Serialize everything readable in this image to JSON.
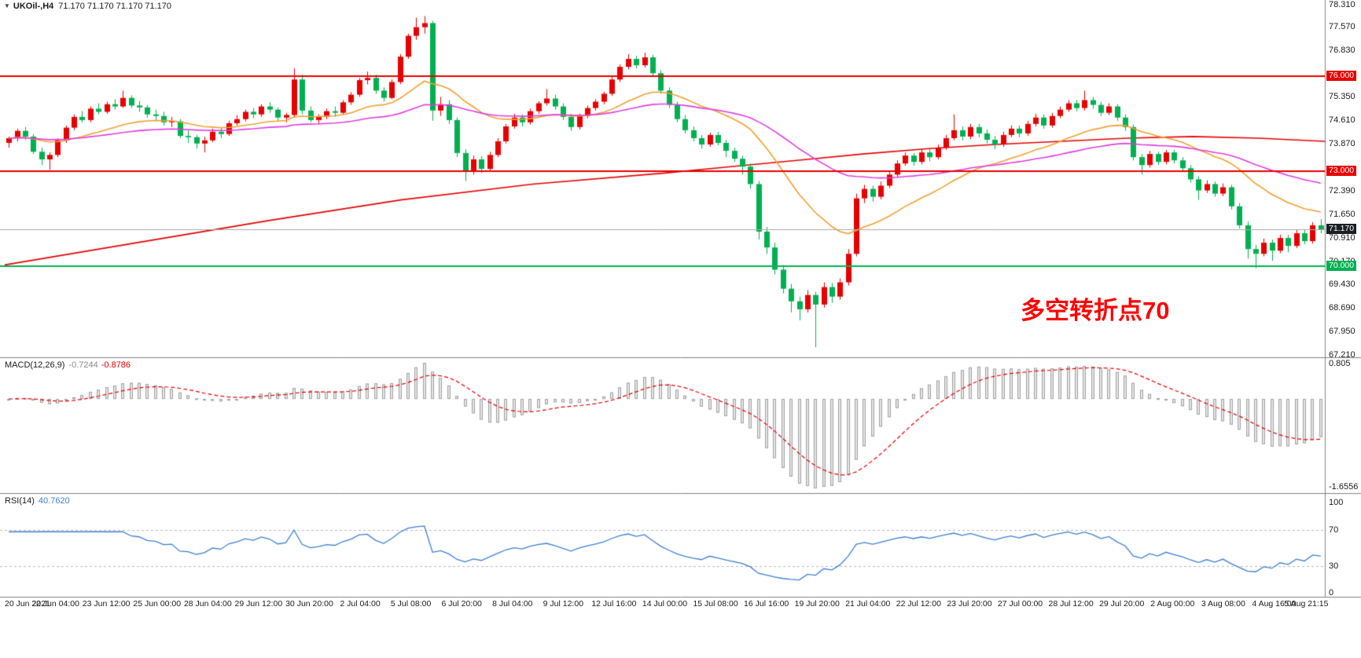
{
  "header": {
    "menu_icon": "▼",
    "symbol": "UKOil-,H4",
    "ohlc_line": "71.170 71.170 71.170 71.170"
  },
  "annotation": {
    "text": "多空转折点70",
    "color": "#FF0000"
  },
  "price_axis": {
    "ticks": [
      "78.310",
      "77.570",
      "76.830",
      "75.350",
      "74.610",
      "73.870",
      "72.390",
      "71.650",
      "70.910",
      "70.170",
      "69.430",
      "68.690",
      "67.950",
      "67.210"
    ],
    "badges": [
      {
        "label": "76.000",
        "price": 76.0,
        "bg": "#E60000",
        "fg": "#FFFFFF"
      },
      {
        "label": "73.000",
        "price": 73.0,
        "bg": "#E60000",
        "fg": "#FFFFFF"
      },
      {
        "label": "71.170",
        "price": 71.17,
        "bg": "#1B1E23",
        "fg": "#FFFFFF"
      },
      {
        "label": "70.000",
        "price": 70.0,
        "bg": "#00B050",
        "fg": "#FFFFFF"
      }
    ]
  },
  "chart_data": {
    "type": "candlestick",
    "symbol": "UKOil-",
    "timeframe": "H4",
    "title": "UKOil- H4 candlestick chart with MACD and RSI",
    "ylim": [
      67.21,
      78.31
    ],
    "up_color": "#E60000",
    "down_color": "#00B050",
    "grid": false,
    "x_labels": [
      "20 Jun 2021",
      "22 Jun 04:00",
      "23 Jun 12:00",
      "25 Jun 00:00",
      "28 Jun 04:00",
      "29 Jun 12:00",
      "30 Jun 20:00",
      "2 Jul 04:00",
      "5 Jul 08:00",
      "6 Jul 20:00",
      "8 Jul 04:00",
      "9 Jul 12:00",
      "12 Jul 16:00",
      "14 Jul 00:00",
      "15 Jul 08:00",
      "16 Jul 16:00",
      "19 Jul 20:00",
      "21 Jul 04:00",
      "22 Jul 12:00",
      "23 Jul 20:00",
      "27 Jul 00:00",
      "28 Jul 12:00",
      "29 Jul 20:00",
      "2 Aug 00:00",
      "3 Aug 08:00",
      "4 Aug 16:00",
      "5 Aug 21:15"
    ],
    "hlines": [
      {
        "price": 76.0,
        "color": "#E60000",
        "width": 2,
        "role": "resistance"
      },
      {
        "price": 73.0,
        "color": "#E60000",
        "width": 2,
        "role": "support-resistance"
      },
      {
        "price": 70.0,
        "color": "#00B050",
        "width": 2,
        "role": "support"
      },
      {
        "price": 71.17,
        "color": "#A8A8A8",
        "width": 1,
        "role": "current-price"
      }
    ],
    "moving_averages": [
      {
        "name": "ma-fast-orange",
        "period": 21,
        "color": "#F0A030"
      },
      {
        "name": "ma-mid-magenta",
        "period": 55,
        "color": "#E03CE0"
      },
      {
        "name": "ma-trend-red",
        "color": "#E60000",
        "points": [
          [
            0,
            70.05
          ],
          [
            0.1,
            70.75
          ],
          [
            0.2,
            71.45
          ],
          [
            0.3,
            72.1
          ],
          [
            0.4,
            72.6
          ],
          [
            0.5,
            72.95
          ],
          [
            0.55,
            73.15
          ],
          [
            0.6,
            73.35
          ],
          [
            0.65,
            73.55
          ],
          [
            0.7,
            73.72
          ],
          [
            0.75,
            73.85
          ],
          [
            0.8,
            73.95
          ],
          [
            0.85,
            74.05
          ],
          [
            0.9,
            74.1
          ],
          [
            0.95,
            74.05
          ],
          [
            1,
            73.95
          ]
        ]
      }
    ],
    "ohlc": [
      [
        73.9,
        74.1,
        73.75,
        74.05
      ],
      [
        74.05,
        74.35,
        73.95,
        74.28
      ],
      [
        74.28,
        74.4,
        74.0,
        74.1
      ],
      [
        74.1,
        74.18,
        73.55,
        73.62
      ],
      [
        73.62,
        73.75,
        73.2,
        73.38
      ],
      [
        73.38,
        73.6,
        73.05,
        73.52
      ],
      [
        73.52,
        74.05,
        73.45,
        73.98
      ],
      [
        73.98,
        74.45,
        73.9,
        74.38
      ],
      [
        74.38,
        74.8,
        74.3,
        74.72
      ],
      [
        74.72,
        74.9,
        74.55,
        74.62
      ],
      [
        74.62,
        75.05,
        74.55,
        74.98
      ],
      [
        74.98,
        75.15,
        74.8,
        74.88
      ],
      [
        74.88,
        75.2,
        74.82,
        75.12
      ],
      [
        75.12,
        75.28,
        74.95,
        75.05
      ],
      [
        75.05,
        75.55,
        75.0,
        75.32
      ],
      [
        75.32,
        75.4,
        75.0,
        75.08
      ],
      [
        75.08,
        75.22,
        74.88,
        75.02
      ],
      [
        75.02,
        75.1,
        74.7,
        74.8
      ],
      [
        74.8,
        74.95,
        74.62,
        74.75
      ],
      [
        74.75,
        74.88,
        74.45,
        74.55
      ],
      [
        74.55,
        74.72,
        74.4,
        74.58
      ],
      [
        74.58,
        74.65,
        74.05,
        74.12
      ],
      [
        74.12,
        74.3,
        73.9,
        74.08
      ],
      [
        74.08,
        74.15,
        73.72,
        73.88
      ],
      [
        73.88,
        74.1,
        73.6,
        73.98
      ],
      [
        73.98,
        74.35,
        73.92,
        74.25
      ],
      [
        74.25,
        74.4,
        74.05,
        74.18
      ],
      [
        74.18,
        74.6,
        74.12,
        74.52
      ],
      [
        74.52,
        74.78,
        74.45,
        74.65
      ],
      [
        74.65,
        74.95,
        74.58,
        74.88
      ],
      [
        74.88,
        75.0,
        74.68,
        74.8
      ],
      [
        74.8,
        75.12,
        74.72,
        75.05
      ],
      [
        75.05,
        75.18,
        74.85,
        74.95
      ],
      [
        74.95,
        75.02,
        74.6,
        74.7
      ],
      [
        74.7,
        74.85,
        74.55,
        74.78
      ],
      [
        74.78,
        76.25,
        74.7,
        75.9
      ],
      [
        75.9,
        76.05,
        74.8,
        74.92
      ],
      [
        74.92,
        75.05,
        74.55,
        74.62
      ],
      [
        74.62,
        74.8,
        74.48,
        74.72
      ],
      [
        74.72,
        74.98,
        74.65,
        74.9
      ],
      [
        74.9,
        75.05,
        74.72,
        74.85
      ],
      [
        74.85,
        75.25,
        74.8,
        75.18
      ],
      [
        75.18,
        75.5,
        75.1,
        75.42
      ],
      [
        75.42,
        75.95,
        75.35,
        75.88
      ],
      [
        75.88,
        76.15,
        75.75,
        75.95
      ],
      [
        75.95,
        76.05,
        75.45,
        75.55
      ],
      [
        75.55,
        75.65,
        75.2,
        75.32
      ],
      [
        75.32,
        75.9,
        75.28,
        75.82
      ],
      [
        75.82,
        76.7,
        75.75,
        76.62
      ],
      [
        76.62,
        77.35,
        76.55,
        77.28
      ],
      [
        77.28,
        77.85,
        77.15,
        77.55
      ],
      [
        77.55,
        77.9,
        77.35,
        77.68
      ],
      [
        77.68,
        77.75,
        74.6,
        74.92
      ],
      [
        74.92,
        75.35,
        74.75,
        75.12
      ],
      [
        75.12,
        75.25,
        74.5,
        74.62
      ],
      [
        74.62,
        74.7,
        73.45,
        73.58
      ],
      [
        73.58,
        73.7,
        72.7,
        73.02
      ],
      [
        73.02,
        73.5,
        72.9,
        73.38
      ],
      [
        73.38,
        73.48,
        72.95,
        73.08
      ],
      [
        73.08,
        73.62,
        73.0,
        73.52
      ],
      [
        73.52,
        74.05,
        73.45,
        73.95
      ],
      [
        73.95,
        74.5,
        73.88,
        74.42
      ],
      [
        74.42,
        74.82,
        74.35,
        74.7
      ],
      [
        74.7,
        74.8,
        74.42,
        74.55
      ],
      [
        74.55,
        74.98,
        74.48,
        74.9
      ],
      [
        74.9,
        75.22,
        74.82,
        75.15
      ],
      [
        75.15,
        75.6,
        75.08,
        75.3
      ],
      [
        75.3,
        75.42,
        74.95,
        75.05
      ],
      [
        75.05,
        75.15,
        74.62,
        74.72
      ],
      [
        74.72,
        74.82,
        74.28,
        74.4
      ],
      [
        74.4,
        74.82,
        74.32,
        74.75
      ],
      [
        74.75,
        75.08,
        74.68,
        75.0
      ],
      [
        75.0,
        75.28,
        74.92,
        75.2
      ],
      [
        75.2,
        75.52,
        75.12,
        75.45
      ],
      [
        75.45,
        75.98,
        75.38,
        75.9
      ],
      [
        75.9,
        76.38,
        75.82,
        76.3
      ],
      [
        76.3,
        76.7,
        76.22,
        76.55
      ],
      [
        76.55,
        76.65,
        76.25,
        76.35
      ],
      [
        76.35,
        76.75,
        76.28,
        76.6
      ],
      [
        76.6,
        76.68,
        76.0,
        76.1
      ],
      [
        76.1,
        76.2,
        75.45,
        75.55
      ],
      [
        75.55,
        75.65,
        75.0,
        75.1
      ],
      [
        75.1,
        75.2,
        74.55,
        74.65
      ],
      [
        74.65,
        74.78,
        74.2,
        74.3
      ],
      [
        74.3,
        74.42,
        73.95,
        74.05
      ],
      [
        74.05,
        74.15,
        73.72,
        73.85
      ],
      [
        73.85,
        74.22,
        73.78,
        74.15
      ],
      [
        74.15,
        74.25,
        73.82,
        73.9
      ],
      [
        73.9,
        74.0,
        73.45,
        73.65
      ],
      [
        73.65,
        73.75,
        73.3,
        73.4
      ],
      [
        73.4,
        73.5,
        72.9,
        73.15
      ],
      [
        73.15,
        73.25,
        72.45,
        72.6
      ],
      [
        72.6,
        72.7,
        70.85,
        71.1
      ],
      [
        71.1,
        71.25,
        70.4,
        70.6
      ],
      [
        70.6,
        70.75,
        69.75,
        69.9
      ],
      [
        69.9,
        70.05,
        69.15,
        69.3
      ],
      [
        69.3,
        69.45,
        68.55,
        68.9
      ],
      [
        68.9,
        69.05,
        68.3,
        68.65
      ],
      [
        68.65,
        69.25,
        68.55,
        69.1
      ],
      [
        69.1,
        69.2,
        67.45,
        68.8
      ],
      [
        68.8,
        69.5,
        68.7,
        69.35
      ],
      [
        69.35,
        69.48,
        68.85,
        69.05
      ],
      [
        69.05,
        69.62,
        68.95,
        69.5
      ],
      [
        69.5,
        70.55,
        69.4,
        70.4
      ],
      [
        70.4,
        72.3,
        70.32,
        72.15
      ],
      [
        72.15,
        72.58,
        72.0,
        72.45
      ],
      [
        72.45,
        72.55,
        72.05,
        72.2
      ],
      [
        72.2,
        72.68,
        72.12,
        72.55
      ],
      [
        72.55,
        73.0,
        72.48,
        72.9
      ],
      [
        72.9,
        73.35,
        72.82,
        73.25
      ],
      [
        73.25,
        73.6,
        73.18,
        73.5
      ],
      [
        73.5,
        73.58,
        73.18,
        73.3
      ],
      [
        73.3,
        73.7,
        73.22,
        73.6
      ],
      [
        73.6,
        73.7,
        73.32,
        73.45
      ],
      [
        73.45,
        73.85,
        73.38,
        73.75
      ],
      [
        73.75,
        74.15,
        73.68,
        74.05
      ],
      [
        74.05,
        74.8,
        73.98,
        74.3
      ],
      [
        74.3,
        74.42,
        73.98,
        74.1
      ],
      [
        74.1,
        74.5,
        74.02,
        74.4
      ],
      [
        74.4,
        74.5,
        74.08,
        74.2
      ],
      [
        74.2,
        74.32,
        73.88,
        74.0
      ],
      [
        74.0,
        74.12,
        73.7,
        73.85
      ],
      [
        73.85,
        74.25,
        73.78,
        74.15
      ],
      [
        74.15,
        74.45,
        74.08,
        74.35
      ],
      [
        74.35,
        74.45,
        74.08,
        74.2
      ],
      [
        74.2,
        74.6,
        74.12,
        74.5
      ],
      [
        74.5,
        74.82,
        74.42,
        74.7
      ],
      [
        74.7,
        74.8,
        74.35,
        74.45
      ],
      [
        74.45,
        74.85,
        74.38,
        74.75
      ],
      [
        74.75,
        75.05,
        74.68,
        74.95
      ],
      [
        74.95,
        75.25,
        74.88,
        75.15
      ],
      [
        75.15,
        75.25,
        74.9,
        75.0
      ],
      [
        75.0,
        75.55,
        74.92,
        75.25
      ],
      [
        75.25,
        75.35,
        74.98,
        75.1
      ],
      [
        75.1,
        75.2,
        74.75,
        74.85
      ],
      [
        74.85,
        75.15,
        74.78,
        75.05
      ],
      [
        75.05,
        75.12,
        74.6,
        74.7
      ],
      [
        74.7,
        74.8,
        74.28,
        74.4
      ],
      [
        74.4,
        74.48,
        73.35,
        73.45
      ],
      [
        73.45,
        73.55,
        72.9,
        73.2
      ],
      [
        73.2,
        73.65,
        73.12,
        73.55
      ],
      [
        73.55,
        73.62,
        73.2,
        73.3
      ],
      [
        73.3,
        73.68,
        73.22,
        73.6
      ],
      [
        73.6,
        73.68,
        73.25,
        73.35
      ],
      [
        73.35,
        73.45,
        73.0,
        73.1
      ],
      [
        73.1,
        73.2,
        72.65,
        72.75
      ],
      [
        72.75,
        72.85,
        72.1,
        72.4
      ],
      [
        72.4,
        72.72,
        72.32,
        72.6
      ],
      [
        72.6,
        72.68,
        72.2,
        72.3
      ],
      [
        72.3,
        72.62,
        72.22,
        72.5
      ],
      [
        72.5,
        72.58,
        71.8,
        71.9
      ],
      [
        71.9,
        72.0,
        71.2,
        71.3
      ],
      [
        71.3,
        71.42,
        70.25,
        70.55
      ],
      [
        70.55,
        70.68,
        69.95,
        70.4
      ],
      [
        70.4,
        70.88,
        70.32,
        70.75
      ],
      [
        70.75,
        70.85,
        70.18,
        70.5
      ],
      [
        70.5,
        71.0,
        70.42,
        70.9
      ],
      [
        70.9,
        71.0,
        70.45,
        70.65
      ],
      [
        70.65,
        71.15,
        70.58,
        71.05
      ],
      [
        71.05,
        71.15,
        70.7,
        70.8
      ],
      [
        70.8,
        71.4,
        70.72,
        71.3
      ],
      [
        71.3,
        71.5,
        71.05,
        71.17
      ]
    ],
    "indicators": {
      "macd": {
        "label": "MACD(12,26,9)",
        "fast": 12,
        "slow": 26,
        "signal": 9,
        "value_main": "-0.7244",
        "value_signal": "-0.8786",
        "scale_max": "0.805",
        "scale_min": "-1.6556",
        "hist_fill": "#E6E6E6",
        "hist_stroke": "#A0A0A0",
        "signal_color": "#E60000"
      },
      "rsi": {
        "label": "RSI(14)",
        "period": 14,
        "value": "40.7620",
        "color": "#3B7FD4",
        "levels": [
          70,
          30
        ],
        "scale_labels": [
          "100",
          "70",
          "30",
          "0"
        ]
      }
    }
  },
  "time_axis": {
    "labels": [
      "20 Jun 2021",
      "22 Jun 04:00",
      "23 Jun 12:00",
      "25 Jun 00:00",
      "28 Jun 04:00",
      "29 Jun 12:00",
      "30 Jun 20:00",
      "2 Jul 04:00",
      "5 Jul 08:00",
      "6 Jul 20:00",
      "8 Jul 04:00",
      "9 Jul 12:00",
      "12 Jul 16:00",
      "14 Jul 00:00",
      "15 Jul 08:00",
      "16 Jul 16:00",
      "19 Jul 20:00",
      "21 Jul 04:00",
      "22 Jul 12:00",
      "23 Jul 20:00",
      "27 Jul 00:00",
      "28 Jul 12:00",
      "29 Jul 20:00",
      "2 Aug 00:00",
      "3 Aug 08:00",
      "4 Aug 16:00",
      "5 Aug 21:15"
    ]
  }
}
